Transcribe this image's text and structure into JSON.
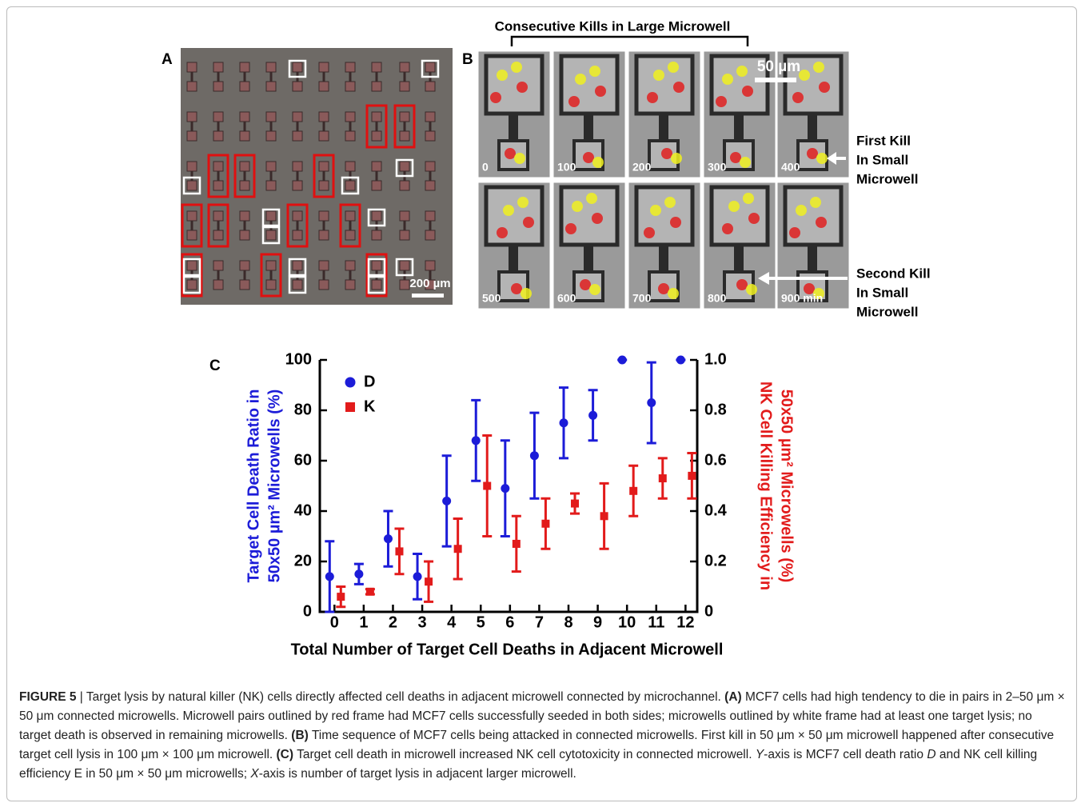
{
  "panel_a": {
    "label": "A",
    "scale_bar": "200 µm"
  },
  "panel_b": {
    "label": "B",
    "title": "Consecutive Kills in Large Microwell",
    "scale_bar": "50 µm",
    "times": [
      "0",
      "100",
      "200",
      "300",
      "400",
      "500",
      "600",
      "700",
      "800",
      "900 min"
    ],
    "annotations": [
      [
        "First Kill",
        "In Small",
        "Microwell"
      ],
      [
        "Second Kill",
        "In Small",
        "Microwell"
      ]
    ]
  },
  "chart_data": {
    "type": "errorbar",
    "label": "C",
    "x": [
      0,
      1,
      2,
      3,
      4,
      5,
      6,
      7,
      8,
      9,
      10,
      11,
      12
    ],
    "series": [
      {
        "name": "D",
        "color": "#1c1cd8",
        "marker": "circle",
        "values": [
          14,
          15,
          29,
          14,
          44,
          68,
          49,
          62,
          75,
          78,
          100,
          83,
          100
        ],
        "errors": [
          14,
          4,
          11,
          9,
          18,
          16,
          19,
          17,
          14,
          10,
          0,
          16,
          0
        ]
      },
      {
        "name": "K",
        "color": "#e21b1b",
        "marker": "square",
        "axis": "y2",
        "values": [
          0.06,
          0.08,
          0.24,
          0.12,
          0.25,
          0.5,
          0.27,
          0.35,
          0.43,
          0.38,
          0.48,
          0.53,
          0.54
        ],
        "errors": [
          0.04,
          0.01,
          0.09,
          0.08,
          0.12,
          0.2,
          0.11,
          0.1,
          0.04,
          0.13,
          0.1,
          0.08,
          0.09
        ]
      }
    ],
    "xlim": [
      -0.5,
      12.4
    ],
    "xticks": [
      0,
      1,
      2,
      3,
      4,
      5,
      6,
      7,
      8,
      9,
      10,
      11,
      12
    ],
    "ylim": [
      0,
      100
    ],
    "yticks": [
      0,
      20,
      40,
      60,
      80,
      100
    ],
    "y2lim": [
      0,
      1
    ],
    "y2ticks": [
      0,
      0.2,
      0.4,
      0.6,
      0.8,
      {
        "value": 1,
        "label": "1.0"
      }
    ],
    "xlabel": "Total Number of Target Cell Deaths in Adjacent Microwell",
    "ylabel": [
      "Target Cell Death Ratio in",
      "50x50 µm² Microwells (%)"
    ],
    "y2label": [
      "NK Cell Killing Efficiency in",
      "50x50 µm² Microwells (%)"
    ],
    "legend": "upper left"
  },
  "caption": [
    {
      "text": "FIGURE 5",
      "bold": true
    },
    {
      "text": " | Target lysis by natural killer (NK) cells directly affected cell deaths in adjacent microwell connected by microchannel. "
    },
    {
      "text": "(A)",
      "bold": true
    },
    {
      "text": " MCF7 cells had high tendency to die in pairs in 2–50 μm × 50 μm connected microwells. Microwell pairs outlined by red frame had MCF7 cells successfully seeded in both sides; microwells outlined by white frame had at least one target lysis; no target death is observed in remaining microwells. "
    },
    {
      "text": "(B)",
      "bold": true
    },
    {
      "text": " Time sequence of MCF7 cells being attacked in connected microwells. First kill in 50 μm × 50 μm microwell happened after consecutive target cell lysis in 100 μm × 100 μm microwell. "
    },
    {
      "text": "(C)",
      "bold": true
    },
    {
      "text": " Target cell death in microwell increased NK cell cytotoxicity in connected microwell. "
    },
    {
      "text": "Y",
      "italic": true
    },
    {
      "text": "-axis is MCF7 cell death ratio "
    },
    {
      "text": "D",
      "italic": true
    },
    {
      "text": " and NK cell killing efficiency E in 50 μm × 50 μm microwells; "
    },
    {
      "text": "X",
      "italic": true
    },
    {
      "text": "-axis is number of target lysis in adjacent larger microwell."
    }
  ]
}
